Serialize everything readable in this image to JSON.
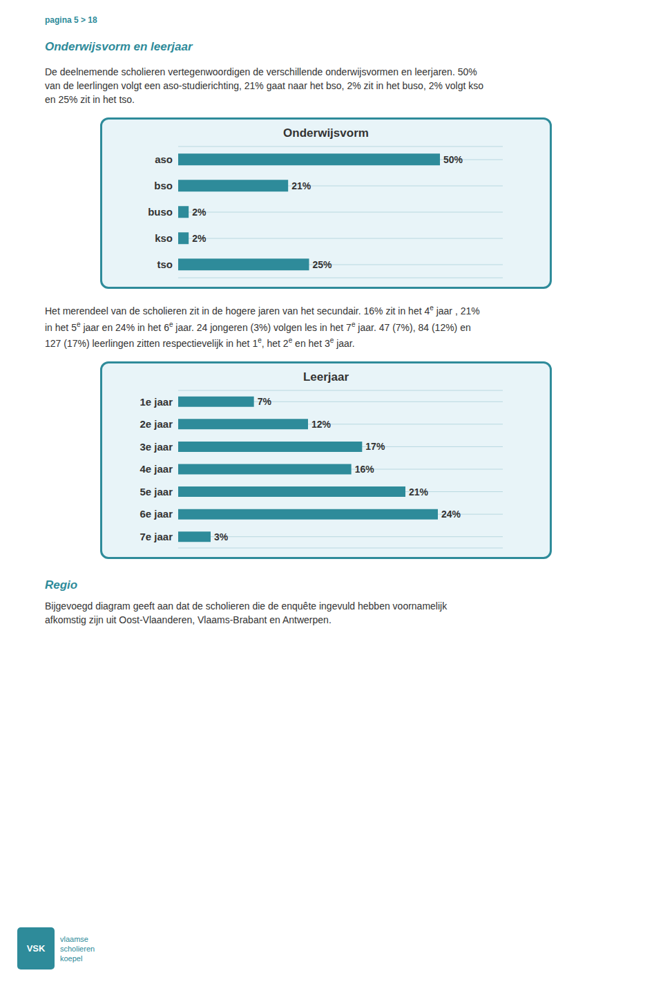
{
  "chart_data": [
    {
      "type": "bar",
      "orientation": "horizontal",
      "title": "Onderwijsvorm",
      "categories": [
        "aso",
        "bso",
        "buso",
        "kso",
        "tso"
      ],
      "values": [
        50,
        21,
        2,
        2,
        25
      ],
      "value_labels": [
        "50%",
        "21%",
        "2%",
        "2%",
        "25%"
      ],
      "data_labels": true,
      "color": "#2e8b9a",
      "xlim": [
        0,
        62
      ],
      "xticks": [],
      "tick_labels": "y",
      "grid": true
    },
    {
      "type": "bar",
      "orientation": "horizontal",
      "title": "Leerjaar",
      "categories": [
        "1e jaar",
        "2e jaar",
        "3e jaar",
        "4e jaar",
        "5e jaar",
        "6e jaar",
        "7e jaar"
      ],
      "values": [
        7,
        12,
        17,
        16,
        21,
        24,
        3
      ],
      "value_labels": [
        "7%",
        "12%",
        "17%",
        "16%",
        "21%",
        "24%",
        "3%"
      ],
      "data_labels": true,
      "color": "#2e8b9a",
      "xlim": [
        0,
        30
      ],
      "xticks": [],
      "tick_labels": "y",
      "grid": true
    }
  ],
  "annotations": [
    "pagina 5 > 18",
    "Onderwijsvorm en leerjaar",
    "De deelnemende scholieren vertegenwoordigen de verschillende onderwijsvormen en leerjaren. 50%",
    "van de leerlingen volgt een aso-studierichting, 21% gaat naar het bso, 2% zit in het buso, 2% volgt kso",
    "en 25% zit in het tso.",
    [
      "Het merendeel van de scholieren zit in de hogere jaren van het secundair. 16% zit in het 4",
      "e",
      " jaar , 21%"
    ],
    [
      "in het 5",
      "e",
      " jaar en 24% in het 6",
      "e",
      " jaar. 24 jongeren (3%) volgen les in het 7",
      "e",
      " jaar. 47 (7%), 84 (12%) en"
    ],
    [
      "127 (17%) leerlingen zitten respectievelijk in het 1",
      "e",
      ", het 2",
      "e",
      " en het 3",
      "e",
      " jaar."
    ],
    "Regio",
    "Bijgevoegd diagram geeft aan dat de scholieren die de enquête ingevuld hebben voornamelijk",
    "afkomstig zijn uit Oost-Vlaanderen, Vlaams-Brabant en Antwerpen.",
    "VSK",
    "vlaamse",
    "scholieren",
    "koepel"
  ]
}
